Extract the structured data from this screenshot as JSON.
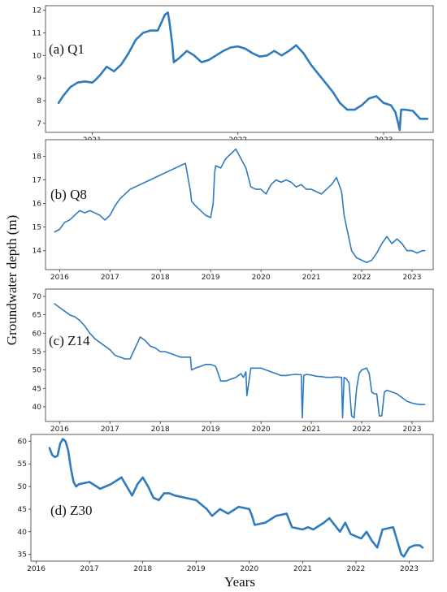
{
  "figure": {
    "y_axis_label": "Groundwater depth (m)",
    "x_axis_label": "Years"
  },
  "colors": {
    "series": "#2f7bbd",
    "frame": "#333333"
  },
  "chart_data": [
    {
      "type": "line",
      "panel_label": "(a)  Q1",
      "ylabel": "Groundwater depth (m)",
      "xlabel": "",
      "xlim": [
        2020.68,
        2023.34
      ],
      "ylim": [
        6.6,
        12.2
      ],
      "xticks": [
        2021,
        2022,
        2023
      ],
      "yticks": [
        7,
        8,
        9,
        10,
        11,
        12
      ],
      "grid": false,
      "series": [
        {
          "x": [
            2020.77,
            2020.8,
            2020.85,
            2020.9,
            2020.95,
            2021.0,
            2021.02,
            2021.05,
            2021.1,
            2021.15,
            2021.2,
            2021.25,
            2021.3,
            2021.35,
            2021.4,
            2021.45,
            2021.5,
            2021.52,
            2021.53,
            2021.55,
            2021.56,
            2021.6,
            2021.65,
            2021.7,
            2021.75,
            2021.8,
            2021.85,
            2021.9,
            2021.95,
            2022.0,
            2022.05,
            2022.1,
            2022.15,
            2022.2,
            2022.25,
            2022.3,
            2022.35,
            2022.4,
            2022.45,
            2022.5,
            2022.55,
            2022.6,
            2022.65,
            2022.7,
            2022.75,
            2022.8,
            2022.85,
            2022.9,
            2022.95,
            2023.0,
            2023.05,
            2023.08,
            2023.1,
            2023.11,
            2023.12,
            2023.15,
            2023.2,
            2023.25,
            2023.3
          ],
          "y": [
            7.9,
            8.2,
            8.6,
            8.8,
            8.85,
            8.8,
            8.9,
            9.1,
            9.5,
            9.3,
            9.6,
            10.1,
            10.7,
            11.0,
            11.1,
            11.1,
            11.8,
            11.9,
            11.5,
            10.5,
            9.7,
            9.9,
            10.2,
            10.0,
            9.7,
            9.8,
            10.0,
            10.2,
            10.35,
            10.4,
            10.3,
            10.1,
            9.95,
            10.0,
            10.2,
            10.0,
            10.2,
            10.45,
            10.1,
            9.6,
            9.2,
            8.8,
            8.4,
            7.9,
            7.6,
            7.6,
            7.8,
            8.1,
            8.2,
            7.9,
            7.8,
            7.5,
            7.0,
            6.7,
            7.6,
            7.6,
            7.55,
            7.2,
            7.2
          ]
        }
      ]
    },
    {
      "type": "line",
      "panel_label": "(b)  Q8",
      "ylabel": "",
      "xlabel": "",
      "xlim": [
        2015.72,
        2023.42
      ],
      "ylim": [
        13.2,
        18.7
      ],
      "xticks": [
        2016,
        2017,
        2018,
        2019,
        2020,
        2021,
        2022,
        2023
      ],
      "yticks": [
        14,
        15,
        16,
        17,
        18
      ],
      "grid": false,
      "series": [
        {
          "x": [
            2015.9,
            2016.0,
            2016.1,
            2016.2,
            2016.3,
            2016.4,
            2016.5,
            2016.6,
            2016.7,
            2016.8,
            2016.9,
            2017.0,
            2017.1,
            2017.2,
            2017.3,
            2017.4,
            2017.5,
            2017.6,
            2017.7,
            2017.8,
            2017.9,
            2018.0,
            2018.1,
            2018.2,
            2018.3,
            2018.4,
            2018.5,
            2018.6,
            2018.62,
            2018.7,
            2018.8,
            2018.9,
            2019.0,
            2019.05,
            2019.08,
            2019.1,
            2019.2,
            2019.3,
            2019.4,
            2019.5,
            2019.6,
            2019.7,
            2019.8,
            2019.9,
            2020.0,
            2020.1,
            2020.2,
            2020.3,
            2020.4,
            2020.5,
            2020.6,
            2020.7,
            2020.8,
            2020.9,
            2021.0,
            2021.1,
            2021.2,
            2021.3,
            2021.4,
            2021.5,
            2021.6,
            2021.65,
            2021.7,
            2021.8,
            2021.9,
            2022.0,
            2022.1,
            2022.2,
            2022.3,
            2022.4,
            2022.5,
            2022.6,
            2022.7,
            2022.8,
            2022.9,
            2023.0,
            2023.1,
            2023.2,
            2023.25
          ],
          "y": [
            14.8,
            14.9,
            15.2,
            15.3,
            15.5,
            15.7,
            15.6,
            15.7,
            15.6,
            15.5,
            15.3,
            15.5,
            15.9,
            16.2,
            16.4,
            16.6,
            16.7,
            16.8,
            16.9,
            17.0,
            17.1,
            17.2,
            17.3,
            17.4,
            17.5,
            17.6,
            17.7,
            16.5,
            16.1,
            15.9,
            15.7,
            15.5,
            15.4,
            16.0,
            17.3,
            17.6,
            17.5,
            17.9,
            18.1,
            18.3,
            17.9,
            17.5,
            16.7,
            16.6,
            16.6,
            16.4,
            16.8,
            17.0,
            16.9,
            17.0,
            16.9,
            16.7,
            16.8,
            16.6,
            16.6,
            16.5,
            16.4,
            16.6,
            16.8,
            17.1,
            16.5,
            15.5,
            15.0,
            14.0,
            13.7,
            13.6,
            13.5,
            13.6,
            13.9,
            14.3,
            14.6,
            14.3,
            14.5,
            14.3,
            14.0,
            14.0,
            13.9,
            14.0,
            14.0
          ]
        }
      ]
    },
    {
      "type": "line",
      "panel_label": "(c)  Z14",
      "ylabel": "",
      "xlabel": "",
      "xlim": [
        2015.72,
        2023.42
      ],
      "ylim": [
        36,
        72
      ],
      "xticks": [
        2016,
        2017,
        2018,
        2019,
        2020,
        2021,
        2022,
        2023
      ],
      "yticks": [
        40,
        45,
        50,
        55,
        60,
        65,
        70
      ],
      "grid": false,
      "series": [
        {
          "x": [
            2015.9,
            2016.0,
            2016.1,
            2016.2,
            2016.3,
            2016.4,
            2016.5,
            2016.6,
            2016.7,
            2016.8,
            2016.9,
            2017.0,
            2017.1,
            2017.2,
            2017.3,
            2017.4,
            2017.5,
            2017.6,
            2017.7,
            2017.8,
            2017.9,
            2018.0,
            2018.1,
            2018.2,
            2018.3,
            2018.4,
            2018.5,
            2018.6,
            2018.62,
            2018.7,
            2018.8,
            2018.9,
            2019.0,
            2019.1,
            2019.15,
            2019.2,
            2019.3,
            2019.4,
            2019.5,
            2019.6,
            2019.65,
            2019.7,
            2019.72,
            2019.8,
            2019.9,
            2020.0,
            2020.1,
            2020.2,
            2020.3,
            2020.4,
            2020.5,
            2020.6,
            2020.7,
            2020.8,
            2020.82,
            2020.85,
            2020.9,
            2021.0,
            2021.1,
            2021.2,
            2021.3,
            2021.4,
            2021.5,
            2021.6,
            2021.62,
            2021.65,
            2021.7,
            2021.75,
            2021.8,
            2021.85,
            2021.9,
            2021.95,
            2022.0,
            2022.1,
            2022.15,
            2022.2,
            2022.25,
            2022.3,
            2022.35,
            2022.4,
            2022.45,
            2022.5,
            2022.6,
            2022.7,
            2022.8,
            2022.9,
            2023.0,
            2023.1,
            2023.2,
            2023.25
          ],
          "y": [
            68.0,
            67.0,
            66.0,
            65.0,
            64.5,
            63.5,
            62.0,
            60.0,
            58.5,
            57.5,
            56.5,
            55.5,
            54.0,
            53.5,
            53.0,
            53.0,
            56.0,
            59.0,
            58.0,
            56.5,
            56.0,
            55.0,
            55.0,
            54.5,
            54.0,
            53.5,
            53.5,
            53.5,
            50.0,
            50.5,
            51.0,
            51.5,
            51.5,
            51.0,
            49.0,
            47.0,
            47.0,
            47.5,
            48.0,
            49.0,
            48.0,
            49.5,
            43.0,
            50.5,
            50.5,
            50.5,
            50.0,
            49.5,
            49.0,
            48.5,
            48.5,
            48.7,
            48.8,
            48.7,
            37.0,
            48.5,
            48.8,
            48.6,
            48.3,
            48.2,
            48.0,
            48.0,
            48.1,
            48.0,
            37.0,
            48.0,
            47.5,
            46.5,
            37.5,
            37.0,
            45.0,
            49.0,
            50.0,
            50.5,
            49.0,
            44.0,
            43.5,
            43.5,
            37.5,
            37.5,
            44.0,
            44.5,
            44.0,
            43.5,
            42.5,
            41.5,
            41.0,
            40.7,
            40.6,
            40.6
          ]
        }
      ]
    },
    {
      "type": "line",
      "panel_label": "(d)  Z30",
      "ylabel": "",
      "xlabel": "Years",
      "xlim": [
        2015.9,
        2023.45
      ],
      "ylim": [
        33.5,
        61.5
      ],
      "xticks": [
        2016,
        2017,
        2018,
        2019,
        2020,
        2021,
        2022,
        2023
      ],
      "yticks": [
        35,
        40,
        45,
        50,
        55,
        60
      ],
      "grid": false,
      "series": [
        {
          "x": [
            2016.25,
            2016.3,
            2016.35,
            2016.4,
            2016.45,
            2016.5,
            2016.55,
            2016.6,
            2016.65,
            2016.7,
            2016.75,
            2016.8,
            2017.0,
            2017.2,
            2017.4,
            2017.6,
            2017.7,
            2017.8,
            2017.9,
            2018.0,
            2018.1,
            2018.2,
            2018.3,
            2018.4,
            2018.5,
            2018.6,
            2018.8,
            2019.0,
            2019.2,
            2019.3,
            2019.45,
            2019.6,
            2019.8,
            2020.0,
            2020.05,
            2020.1,
            2020.3,
            2020.5,
            2020.7,
            2020.8,
            2021.0,
            2021.1,
            2021.2,
            2021.4,
            2021.5,
            2021.7,
            2021.8,
            2021.9,
            2022.0,
            2022.1,
            2022.2,
            2022.3,
            2022.4,
            2022.5,
            2022.7,
            2022.8,
            2022.85,
            2022.9,
            2023.0,
            2023.1,
            2023.2,
            2023.25
          ],
          "y": [
            58.5,
            57.0,
            56.5,
            56.8,
            59.5,
            60.5,
            60.0,
            58.0,
            54.0,
            51.0,
            50.0,
            50.5,
            51.0,
            49.5,
            50.5,
            52.0,
            50.0,
            48.0,
            50.5,
            52.0,
            50.0,
            47.5,
            47.0,
            48.5,
            48.5,
            48.0,
            47.5,
            47.0,
            45.0,
            43.5,
            45.0,
            44.0,
            45.5,
            45.0,
            43.5,
            41.5,
            42.0,
            43.5,
            44.0,
            41.0,
            40.5,
            41.0,
            40.5,
            42.0,
            43.0,
            40.0,
            42.0,
            39.5,
            39.0,
            38.5,
            40.0,
            38.0,
            36.5,
            40.5,
            41.0,
            37.0,
            35.0,
            34.5,
            36.5,
            37.0,
            37.0,
            36.5
          ]
        }
      ]
    }
  ]
}
